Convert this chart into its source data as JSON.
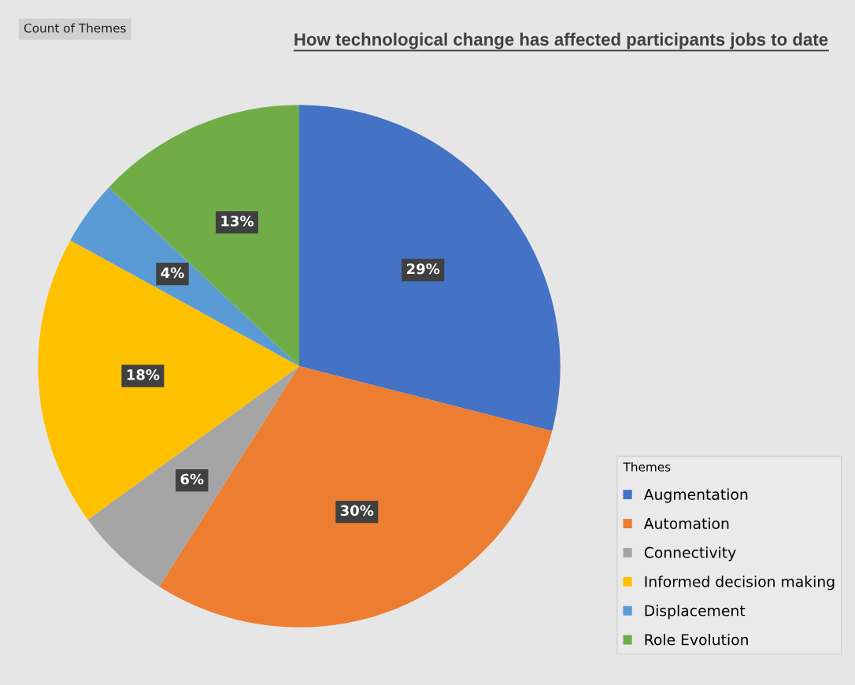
{
  "chart_data": {
    "type": "pie",
    "title": "How technological change has affected participants jobs to date",
    "categories": [
      "Augmentation",
      "Automation",
      "Connectivity",
      "Informed decision making",
      "Displacement",
      "Role Evolution"
    ],
    "values": [
      29,
      30,
      6,
      18,
      4,
      13
    ],
    "colors": [
      "#4472c4",
      "#ed7d31",
      "#a5a5a5",
      "#ffc000",
      "#5b9bd5",
      "#70ad47"
    ],
    "value_labels": [
      "29%",
      "30%",
      "6%",
      "18%",
      "4%",
      "13%"
    ],
    "legend": "right",
    "legend_title": "Themes",
    "annotations": [
      "Count of Themes"
    ]
  }
}
